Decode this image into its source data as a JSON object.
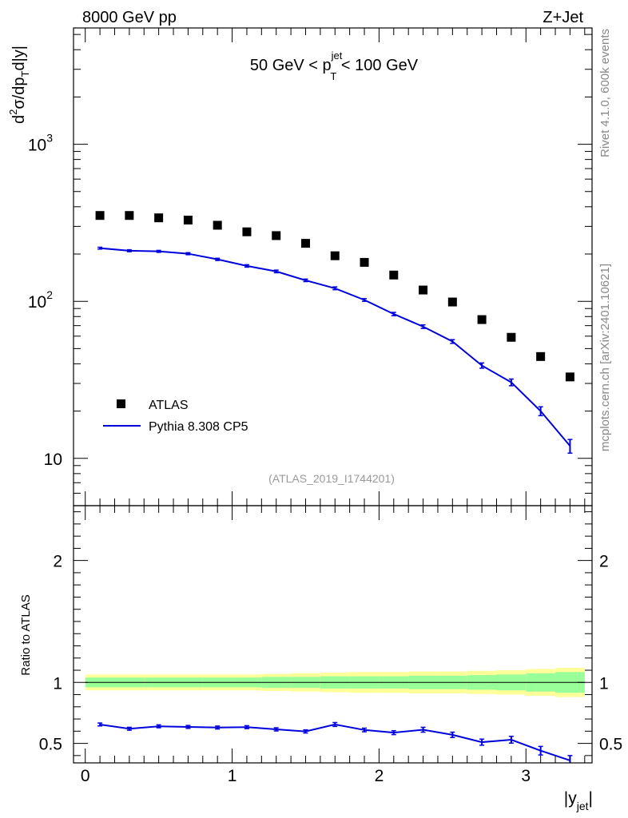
{
  "header": {
    "left": "8000 GeV pp",
    "right": "Z+Jet"
  },
  "side_labels": {
    "rivet": "Rivet 4.1.0,  600k events",
    "mcplots": "mcplots.cern.ch [arXiv:2401.10621]"
  },
  "chart_data": [
    {
      "type": "scatter",
      "panel": "main",
      "title_parts": {
        "prefix": "50 GeV < p",
        "sup": "jet",
        "sub": "T",
        "suffix": " < 100 GeV"
      },
      "ylabel_parts": {
        "d": "d",
        "sup2": "2",
        "mid": "σ/dp",
        "subT": "T",
        "end": "d|y|"
      },
      "yscale": "log",
      "ylim": [
        5,
        5500
      ],
      "xlim": [
        -0.08,
        3.45
      ],
      "y_ticks": [
        {
          "value": 10,
          "base": "10",
          "exp": ""
        },
        {
          "value": 100,
          "base": "10",
          "exp": "2"
        },
        {
          "value": 1000,
          "base": "10",
          "exp": "3"
        }
      ],
      "watermark": "(ATLAS_2019_I1744201)",
      "legend": {
        "position": "bottom-left",
        "entries": [
          "ATLAS",
          "Pythia 8.308 CP5"
        ]
      },
      "x": [
        0.1,
        0.3,
        0.5,
        0.7,
        0.9,
        1.1,
        1.3,
        1.5,
        1.7,
        1.9,
        2.1,
        2.3,
        2.5,
        2.7,
        2.9,
        3.1,
        3.3
      ],
      "series": [
        {
          "name": "ATLAS",
          "color": "#000000",
          "values": [
            352,
            352,
            340,
            329,
            305,
            277,
            262,
            234,
            195,
            177,
            147,
            118,
            99,
            76.5,
            59,
            44.5,
            33
          ]
        },
        {
          "name": "Pythia 8.308 CP5",
          "color": "#0000dd",
          "values": [
            218,
            210,
            208,
            201,
            185,
            168,
            155,
            136,
            121,
            102,
            83,
            69,
            55.5,
            39,
            30.5,
            20,
            12
          ],
          "errors": [
            3,
            3,
            3,
            3,
            3,
            3,
            3,
            2.5,
            2.5,
            2,
            2,
            1.8,
            1.5,
            1.5,
            1.5,
            1.3,
            1.2
          ]
        }
      ]
    },
    {
      "type": "line",
      "panel": "ratio",
      "ylabel": "Ratio to ATLAS",
      "xlabel_parts": {
        "main": "|y",
        "sub": "jet",
        "end": "|"
      },
      "ylim": [
        0.34,
        2.45
      ],
      "xlim": [
        -0.08,
        3.45
      ],
      "x_ticks": [
        0,
        1,
        2,
        3
      ],
      "y_ticks": [
        0.5,
        1,
        2
      ],
      "band_edges": [
        0,
        0.2,
        0.4,
        0.6,
        0.8,
        1.0,
        1.2,
        1.4,
        1.6,
        1.8,
        2.0,
        2.2,
        2.4,
        2.6,
        2.8,
        3.0,
        3.2,
        3.4
      ],
      "band_green": [
        0.04,
        0.04,
        0.04,
        0.04,
        0.04,
        0.04,
        0.045,
        0.045,
        0.05,
        0.05,
        0.05,
        0.055,
        0.055,
        0.06,
        0.065,
        0.075,
        0.085
      ],
      "band_yellow": [
        0.065,
        0.065,
        0.065,
        0.065,
        0.065,
        0.065,
        0.07,
        0.075,
        0.08,
        0.085,
        0.085,
        0.09,
        0.09,
        0.095,
        0.1,
        0.11,
        0.12
      ],
      "x": [
        0.1,
        0.3,
        0.5,
        0.7,
        0.9,
        1.1,
        1.3,
        1.5,
        1.7,
        1.9,
        2.1,
        2.3,
        2.5,
        2.7,
        2.9,
        3.1,
        3.3
      ],
      "series": [
        {
          "name": "Pythia 8.308 CP5",
          "color": "#0000dd",
          "values": [
            0.655,
            0.62,
            0.64,
            0.635,
            0.63,
            0.633,
            0.615,
            0.598,
            0.655,
            0.61,
            0.588,
            0.612,
            0.57,
            0.51,
            0.53,
            0.44,
            0.36
          ],
          "errors": [
            0.012,
            0.012,
            0.012,
            0.012,
            0.012,
            0.012,
            0.013,
            0.013,
            0.016,
            0.015,
            0.016,
            0.02,
            0.022,
            0.025,
            0.028,
            0.035,
            0.04
          ]
        }
      ]
    }
  ]
}
